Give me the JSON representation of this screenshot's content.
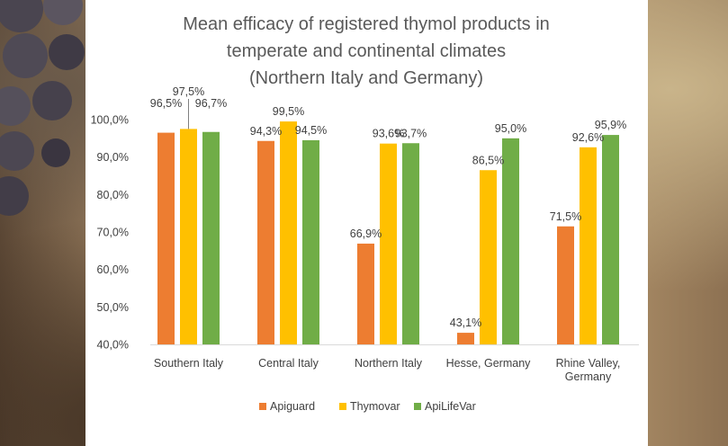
{
  "chart_data": {
    "type": "bar",
    "title_lines": [
      "Mean efficacy of registered thymol products in",
      "temperate and continental climates",
      "(Northern Italy and Germany)"
    ],
    "categories": [
      [
        "Southern Italy"
      ],
      [
        "Central Italy"
      ],
      [
        "Northern Italy"
      ],
      [
        "Hesse, Germany"
      ],
      [
        "Rhine Valley,",
        "Germany"
      ]
    ],
    "series": [
      {
        "name": "Apiguard",
        "color": "#ED7D31",
        "values": [
          96.5,
          94.3,
          66.9,
          43.1,
          71.5
        ],
        "labels": [
          "96,5%",
          "94,3%",
          "66,9%",
          "43,1%",
          "71,5%"
        ]
      },
      {
        "name": "Thymovar",
        "color": "#FFC000",
        "values": [
          97.5,
          99.5,
          93.6,
          86.5,
          92.6
        ],
        "labels": [
          "97,5%",
          "99,5%",
          "93,6%",
          "86,5%",
          "92,6%"
        ]
      },
      {
        "name": "ApiLifeVar",
        "color": "#70AD47",
        "values": [
          96.7,
          94.5,
          93.7,
          95.0,
          95.9
        ],
        "labels": [
          "96,7%",
          "94,5%",
          "93,7%",
          "95,0%",
          "95,9%"
        ]
      }
    ],
    "ylim": [
      40,
      100
    ],
    "yticks": [
      40,
      50,
      60,
      70,
      80,
      90,
      100
    ],
    "ytick_labels": [
      "40,0%",
      "50,0%",
      "60,0%",
      "70,0%",
      "80,0%",
      "90,0%",
      "100,0%"
    ],
    "grid": false,
    "legend_position": "bottom"
  }
}
